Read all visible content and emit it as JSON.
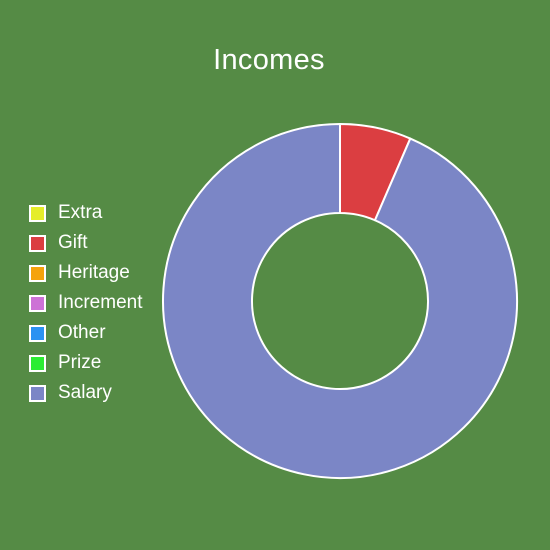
{
  "chart_data": {
    "type": "pie",
    "style": "donut",
    "title": "Incomes",
    "legend_position": "left",
    "categories": [
      "Extra",
      "Gift",
      "Heritage",
      "Increment",
      "Other",
      "Prize",
      "Salary"
    ],
    "values": [
      0,
      6.5,
      0,
      0,
      0,
      0,
      93.5
    ],
    "colors": [
      "#e5ed2a",
      "#db3e41",
      "#f5a30c",
      "#cd72d6",
      "#2b92f2",
      "#2bed33",
      "#7b86c6"
    ],
    "background": "#558b45",
    "border_color": "#ffffff"
  }
}
